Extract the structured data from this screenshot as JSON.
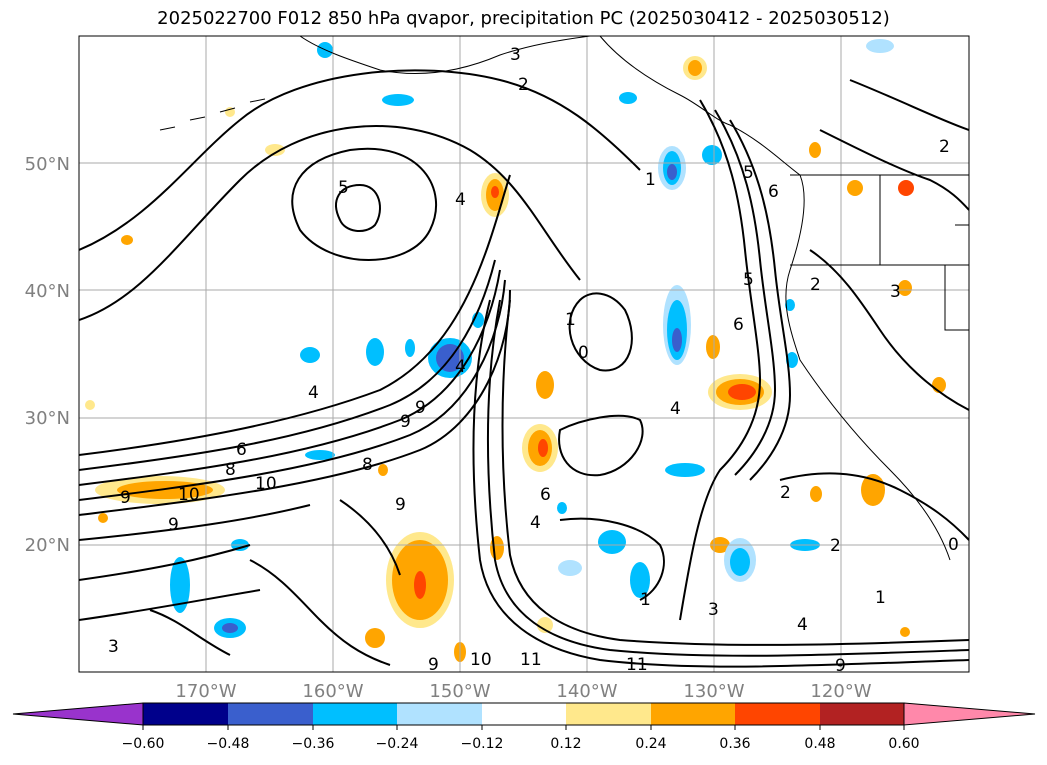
{
  "title": "2025022700 F012 850 hPa qvapor, precipitation PC (2025030412 - 2025030512)",
  "lat_labels": [
    "50°N",
    "40°N",
    "30°N",
    "20°N"
  ],
  "lon_labels": [
    "170°W",
    "160°W",
    "150°W",
    "140°W",
    "130°W",
    "120°W"
  ],
  "colorbar": {
    "ticks": [
      "−0.60",
      "−0.48",
      "−0.36",
      "−0.24",
      "−0.12",
      "0.12",
      "0.24",
      "0.36",
      "0.48",
      "0.60"
    ],
    "colors": [
      "#9933cc",
      "#00008b",
      "#3a5fcd",
      "#00bfff",
      "#b0e2ff",
      "#ffffff",
      "#ffe88c",
      "#ffa500",
      "#ff4500",
      "#b22222",
      "#ff88aa"
    ]
  },
  "contour_labels": [
    "3",
    "2",
    "5",
    "4",
    "4",
    "6",
    "8",
    "10",
    "9",
    "9",
    "1",
    "0",
    "6",
    "5",
    "4",
    "4",
    "1",
    "6",
    "8",
    "4",
    "2",
    "2",
    "3",
    "1",
    "9",
    "10",
    "11",
    "11",
    "9",
    "3",
    "4",
    "2",
    "6",
    "9",
    "1",
    "3",
    "9",
    "10",
    "9",
    "5",
    "2",
    "0"
  ]
}
